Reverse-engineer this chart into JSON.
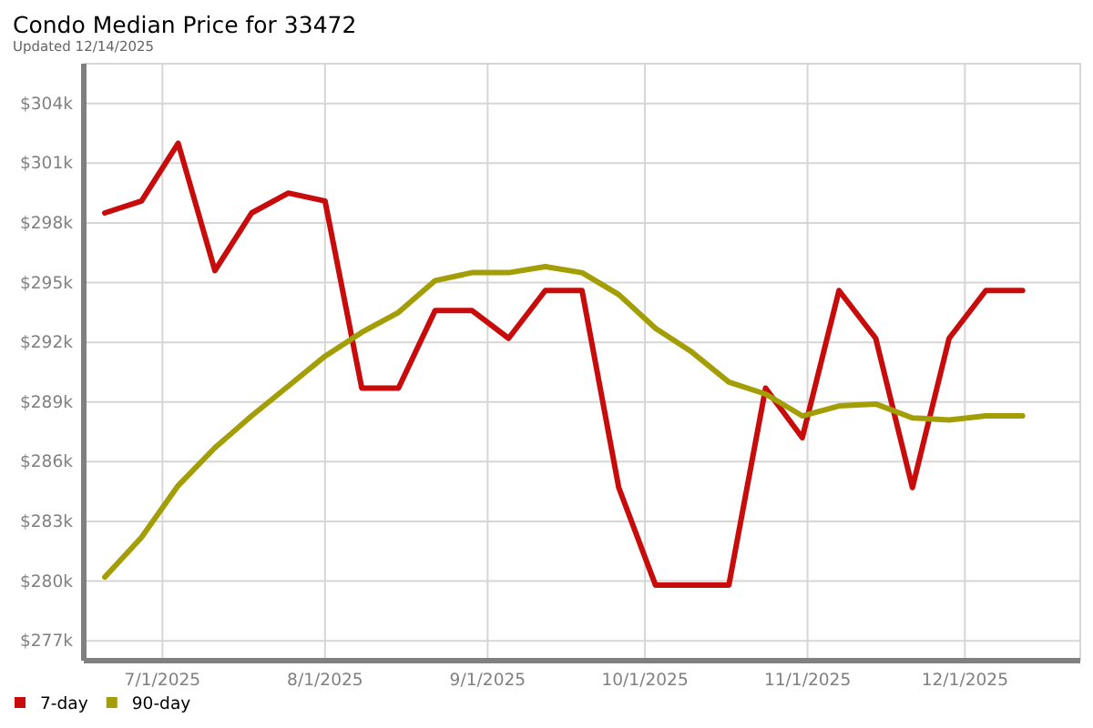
{
  "chart_data": {
    "type": "line",
    "title": "Condo Median Price for 33472",
    "subtitle": "Updated 12/14/2025",
    "x": [
      "2025-06-20",
      "2025-06-27",
      "2025-07-04",
      "2025-07-11",
      "2025-07-18",
      "2025-07-25",
      "2025-08-01",
      "2025-08-08",
      "2025-08-15",
      "2025-08-22",
      "2025-08-29",
      "2025-09-05",
      "2025-09-12",
      "2025-09-19",
      "2025-09-26",
      "2025-10-03",
      "2025-10-10",
      "2025-10-17",
      "2025-10-24",
      "2025-10-31",
      "2025-11-07",
      "2025-11-14",
      "2025-11-21",
      "2025-11-28",
      "2025-12-05",
      "2025-12-12"
    ],
    "series": [
      {
        "name": "7-day",
        "color": "#c80c0c",
        "values": [
          298.5,
          299.1,
          302.0,
          295.6,
          298.5,
          299.5,
          299.1,
          289.7,
          289.7,
          293.6,
          293.6,
          292.2,
          294.6,
          294.6,
          284.7,
          279.8,
          279.8,
          279.8,
          289.7,
          287.2,
          294.6,
          292.2,
          284.7,
          292.2,
          294.6,
          294.6
        ]
      },
      {
        "name": "90-day",
        "color": "#a39e06",
        "values": [
          280.2,
          282.2,
          284.8,
          286.7,
          288.3,
          289.8,
          291.3,
          292.5,
          293.5,
          295.1,
          295.5,
          295.5,
          295.8,
          295.5,
          294.4,
          292.7,
          291.5,
          290.0,
          289.4,
          288.3,
          288.8,
          288.9,
          288.2,
          288.1,
          288.3,
          288.3
        ]
      }
    ],
    "xlim": [
      "2025-06-16",
      "2025-12-23"
    ],
    "xticks": [
      {
        "value": "2025-07-01",
        "label": "7/1/2025"
      },
      {
        "value": "2025-08-01",
        "label": "8/1/2025"
      },
      {
        "value": "2025-09-01",
        "label": "9/1/2025"
      },
      {
        "value": "2025-10-01",
        "label": "10/1/2025"
      },
      {
        "value": "2025-11-01",
        "label": "11/1/2025"
      },
      {
        "value": "2025-12-01",
        "label": "12/1/2025"
      }
    ],
    "ylim": [
      276,
      306
    ],
    "yticks": [
      {
        "value": 277,
        "label": "$277k"
      },
      {
        "value": 280,
        "label": "$280k"
      },
      {
        "value": 283,
        "label": "$283k"
      },
      {
        "value": 286,
        "label": "$286k"
      },
      {
        "value": 289,
        "label": "$289k"
      },
      {
        "value": 292,
        "label": "$292k"
      },
      {
        "value": 295,
        "label": "$295k"
      },
      {
        "value": 298,
        "label": "$298k"
      },
      {
        "value": 301,
        "label": "$301k"
      },
      {
        "value": 304,
        "label": "$304k"
      }
    ],
    "grid": true,
    "legend": "bottom left",
    "line_style": "solid"
  }
}
